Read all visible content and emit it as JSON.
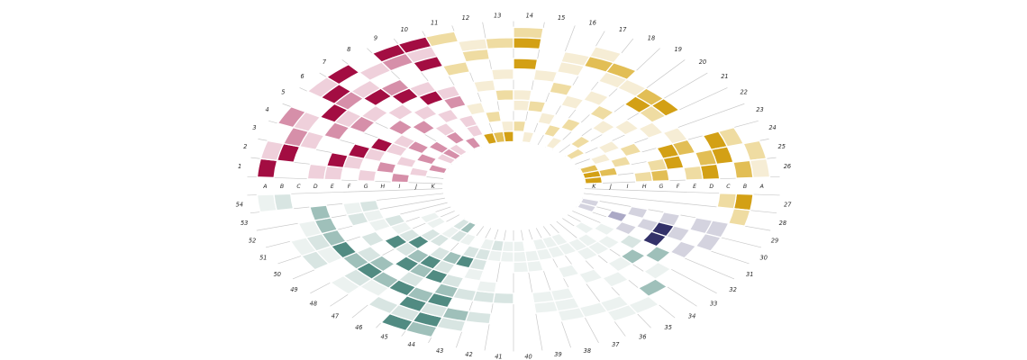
{
  "figure": {
    "title": "",
    "description": "Radial (elliptical) heatmap with 54 numbered sectors and rings labeled A-K, colored in four quadrant palettes: crimson, gold, purple and teal."
  },
  "chart_data": {
    "type": "heatmap",
    "layout": "radial-ellipse",
    "grid": "radial spokes only",
    "legend": "none",
    "sector_labels": [
      "1",
      "2",
      "3",
      "4",
      "5",
      "6",
      "7",
      "8",
      "9",
      "10",
      "11",
      "12",
      "13",
      "14",
      "15",
      "16",
      "17",
      "18",
      "19",
      "20",
      "21",
      "22",
      "23",
      "24",
      "25",
      "26",
      "27",
      "28",
      "29",
      "30",
      "31",
      "32",
      "33",
      "34",
      "35",
      "36",
      "37",
      "38",
      "39",
      "40",
      "41",
      "42",
      "43",
      "44",
      "45",
      "46",
      "47",
      "48",
      "49",
      "50",
      "51",
      "52",
      "53",
      "54"
    ],
    "ring_labels": [
      "A",
      "B",
      "C",
      "D",
      "E",
      "F",
      "G",
      "H",
      "I",
      "J",
      "K"
    ],
    "ring_axis_positions": [
      "left",
      "right"
    ],
    "value_scale": [
      0,
      1,
      2,
      3,
      4
    ],
    "groups": [
      {
        "name": "crimson",
        "sector_range": [
          1,
          10
        ],
        "palette": {
          "1": "#f6e4ea",
          "2": "#efd0db",
          "3": "#d68fa9",
          "4": "#a30d42"
        }
      },
      {
        "name": "gold",
        "sector_range": [
          11,
          28
        ],
        "palette": {
          "1": "#f6edd5",
          "2": "#efdca2",
          "3": "#e2be55",
          "4": "#d3a015"
        }
      },
      {
        "name": "purple",
        "sector_range": [
          29,
          31
        ],
        "palette": {
          "1": "#e8e7ef",
          "2": "#d4d3df",
          "3": "#aba9c6",
          "4": "#333169"
        }
      },
      {
        "name": "teal",
        "sector_range": [
          32,
          54
        ],
        "palette": {
          "1": "#ecf2f0",
          "2": "#d8e5e2",
          "3": "#9fc0ba",
          "4": "#518b82"
        }
      }
    ],
    "values": [
      [
        4,
        0,
        0,
        2,
        2,
        0,
        2,
        0,
        3,
        0,
        0
      ],
      [
        2,
        4,
        0,
        0,
        4,
        2,
        0,
        3,
        0,
        2,
        0
      ],
      [
        0,
        3,
        2,
        0,
        0,
        4,
        2,
        0,
        2,
        0,
        3
      ],
      [
        3,
        2,
        0,
        3,
        0,
        0,
        4,
        2,
        0,
        3,
        0
      ],
      [
        0,
        0,
        4,
        2,
        3,
        0,
        0,
        2,
        3,
        0,
        2
      ],
      [
        2,
        4,
        3,
        0,
        2,
        0,
        3,
        0,
        0,
        3,
        3
      ],
      [
        4,
        0,
        2,
        4,
        0,
        2,
        0,
        3,
        0,
        0,
        2
      ],
      [
        0,
        2,
        0,
        3,
        4,
        0,
        2,
        0,
        2,
        3,
        0
      ],
      [
        4,
        3,
        0,
        0,
        2,
        4,
        0,
        2,
        0,
        0,
        3
      ],
      [
        4,
        2,
        4,
        0,
        0,
        2,
        3,
        0,
        2,
        2,
        0
      ],
      [
        2,
        0,
        0,
        2,
        0,
        0,
        0,
        1,
        0,
        0,
        4
      ],
      [
        0,
        1,
        2,
        0,
        0,
        1,
        0,
        0,
        2,
        0,
        3
      ],
      [
        0,
        2,
        0,
        0,
        1,
        0,
        2,
        0,
        0,
        1,
        4
      ],
      [
        2,
        4,
        0,
        4,
        0,
        0,
        1,
        1,
        0,
        2,
        0
      ],
      [
        0,
        0,
        0,
        0,
        1,
        0,
        0,
        2,
        0,
        0,
        1
      ],
      [
        0,
        0,
        1,
        1,
        0,
        2,
        0,
        0,
        1,
        0,
        0
      ],
      [
        0,
        1,
        3,
        0,
        0,
        0,
        1,
        0,
        0,
        2,
        0
      ],
      [
        0,
        0,
        3,
        1,
        0,
        1,
        0,
        0,
        2,
        0,
        1
      ],
      [
        0,
        0,
        0,
        1,
        0,
        0,
        2,
        0,
        0,
        0,
        0
      ],
      [
        0,
        0,
        0,
        3,
        4,
        0,
        0,
        1,
        0,
        2,
        0
      ],
      [
        0,
        0,
        0,
        4,
        2,
        0,
        1,
        0,
        0,
        0,
        2
      ],
      [
        0,
        0,
        0,
        0,
        0,
        1,
        0,
        0,
        1,
        0,
        0
      ],
      [
        0,
        0,
        0,
        0,
        1,
        0,
        0,
        2,
        0,
        1,
        0
      ],
      [
        0,
        2,
        4,
        0,
        3,
        4,
        0,
        0,
        2,
        0,
        3
      ],
      [
        2,
        0,
        4,
        3,
        0,
        4,
        2,
        0,
        0,
        3,
        4
      ],
      [
        1,
        3,
        0,
        4,
        2,
        0,
        3,
        2,
        0,
        0,
        4
      ],
      [
        0,
        4,
        2,
        0,
        0,
        0,
        0,
        0,
        0,
        0,
        0
      ],
      [
        0,
        2,
        0,
        0,
        0,
        0,
        0,
        0,
        0,
        0,
        0
      ],
      [
        0,
        0,
        2,
        2,
        0,
        2,
        0,
        2,
        0,
        0,
        2
      ],
      [
        0,
        0,
        2,
        0,
        2,
        4,
        2,
        0,
        3,
        0,
        2
      ],
      [
        0,
        0,
        0,
        2,
        0,
        4,
        0,
        2,
        0,
        0,
        0
      ],
      [
        0,
        0,
        0,
        0,
        3,
        0,
        2,
        0,
        1,
        0,
        0
      ],
      [
        0,
        0,
        0,
        1,
        0,
        3,
        0,
        1,
        0,
        1,
        0
      ],
      [
        0,
        0,
        3,
        0,
        0,
        1,
        0,
        1,
        1,
        0,
        0
      ],
      [
        0,
        1,
        0,
        0,
        1,
        0,
        0,
        1,
        1,
        0,
        0
      ],
      [
        0,
        1,
        1,
        0,
        0,
        1,
        0,
        0,
        1,
        1,
        0
      ],
      [
        0,
        0,
        1,
        0,
        0,
        0,
        1,
        0,
        1,
        1,
        0
      ],
      [
        0,
        0,
        1,
        1,
        1,
        0,
        0,
        0,
        1,
        1,
        0
      ],
      [
        0,
        0,
        0,
        1,
        1,
        0,
        0,
        1,
        1,
        0,
        0
      ],
      [
        0,
        0,
        0,
        0,
        0,
        0,
        0,
        1,
        1,
        1,
        0
      ],
      [
        0,
        0,
        0,
        0,
        2,
        0,
        0,
        0,
        1,
        1,
        0
      ],
      [
        0,
        0,
        2,
        0,
        2,
        1,
        0,
        0,
        1,
        2,
        0
      ],
      [
        0,
        2,
        3,
        0,
        2,
        0,
        1,
        2,
        2,
        1,
        0
      ],
      [
        3,
        4,
        2,
        4,
        3,
        2,
        0,
        4,
        2,
        0,
        0
      ],
      [
        4,
        2,
        4,
        3,
        0,
        4,
        2,
        3,
        0,
        1,
        0
      ],
      [
        0,
        2,
        0,
        4,
        2,
        3,
        4,
        2,
        0,
        2,
        3
      ],
      [
        0,
        0,
        1,
        3,
        0,
        4,
        3,
        0,
        2,
        1,
        2
      ],
      [
        0,
        1,
        2,
        4,
        3,
        0,
        2,
        4,
        2,
        0,
        0
      ],
      [
        0,
        0,
        0,
        3,
        2,
        0,
        4,
        2,
        0,
        1,
        0
      ],
      [
        0,
        2,
        1,
        4,
        0,
        2,
        0,
        1,
        0,
        1,
        0
      ],
      [
        0,
        1,
        2,
        3,
        0,
        0,
        1,
        2,
        0,
        0,
        0
      ],
      [
        0,
        0,
        1,
        3,
        0,
        2,
        1,
        0,
        0,
        0,
        0
      ],
      [
        0,
        0,
        0,
        3,
        0,
        1,
        2,
        0,
        0,
        0,
        0
      ],
      [
        1,
        2,
        0,
        0,
        0,
        0,
        0,
        0,
        0,
        0,
        0
      ]
    ],
    "style_colors": {
      "spoke_line": "#c9c9c9",
      "cell_border": "#ffffff",
      "label_text": "#2b2b2b",
      "background": "#ffffff"
    }
  }
}
